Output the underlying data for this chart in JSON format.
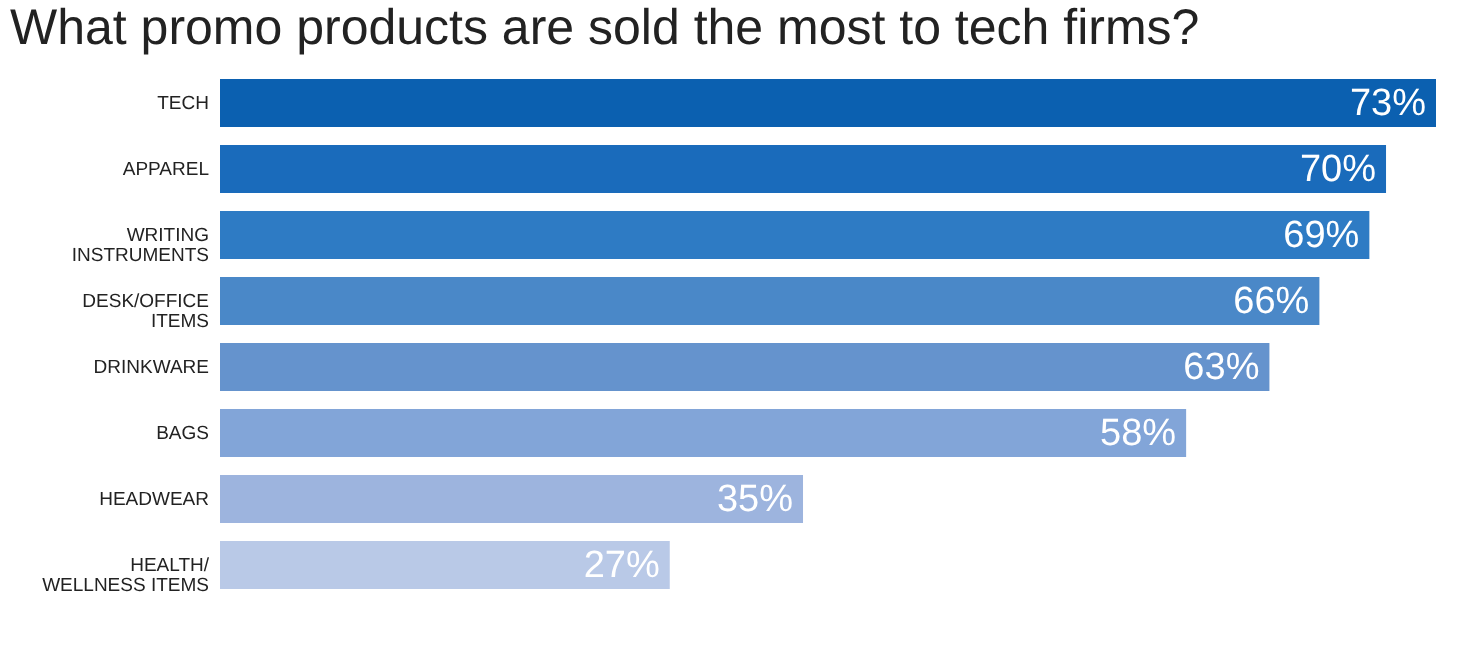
{
  "chart_data": {
    "type": "bar",
    "orientation": "horizontal",
    "title": "What promo products are sold the most to tech firms?",
    "categories": [
      "TECH",
      "APPAREL",
      "WRITING\nINSTRUMENTS",
      "DESK/OFFICE\nITEMS",
      "DRINKWARE",
      "BAGS",
      "HEADWEAR",
      "HEALTH/\nWELLNESS ITEMS"
    ],
    "values": [
      73,
      70,
      69,
      66,
      63,
      58,
      35,
      27
    ],
    "value_labels": [
      "73%",
      "70%",
      "69%",
      "66%",
      "63%",
      "58%",
      "35%",
      "27%"
    ],
    "colors": [
      "#0b60b0",
      "#1a6bbb",
      "#2e7bc4",
      "#4a88c8",
      "#6593cd",
      "#82a5d8",
      "#9db4de",
      "#b9c9e7"
    ],
    "relative": false
  }
}
